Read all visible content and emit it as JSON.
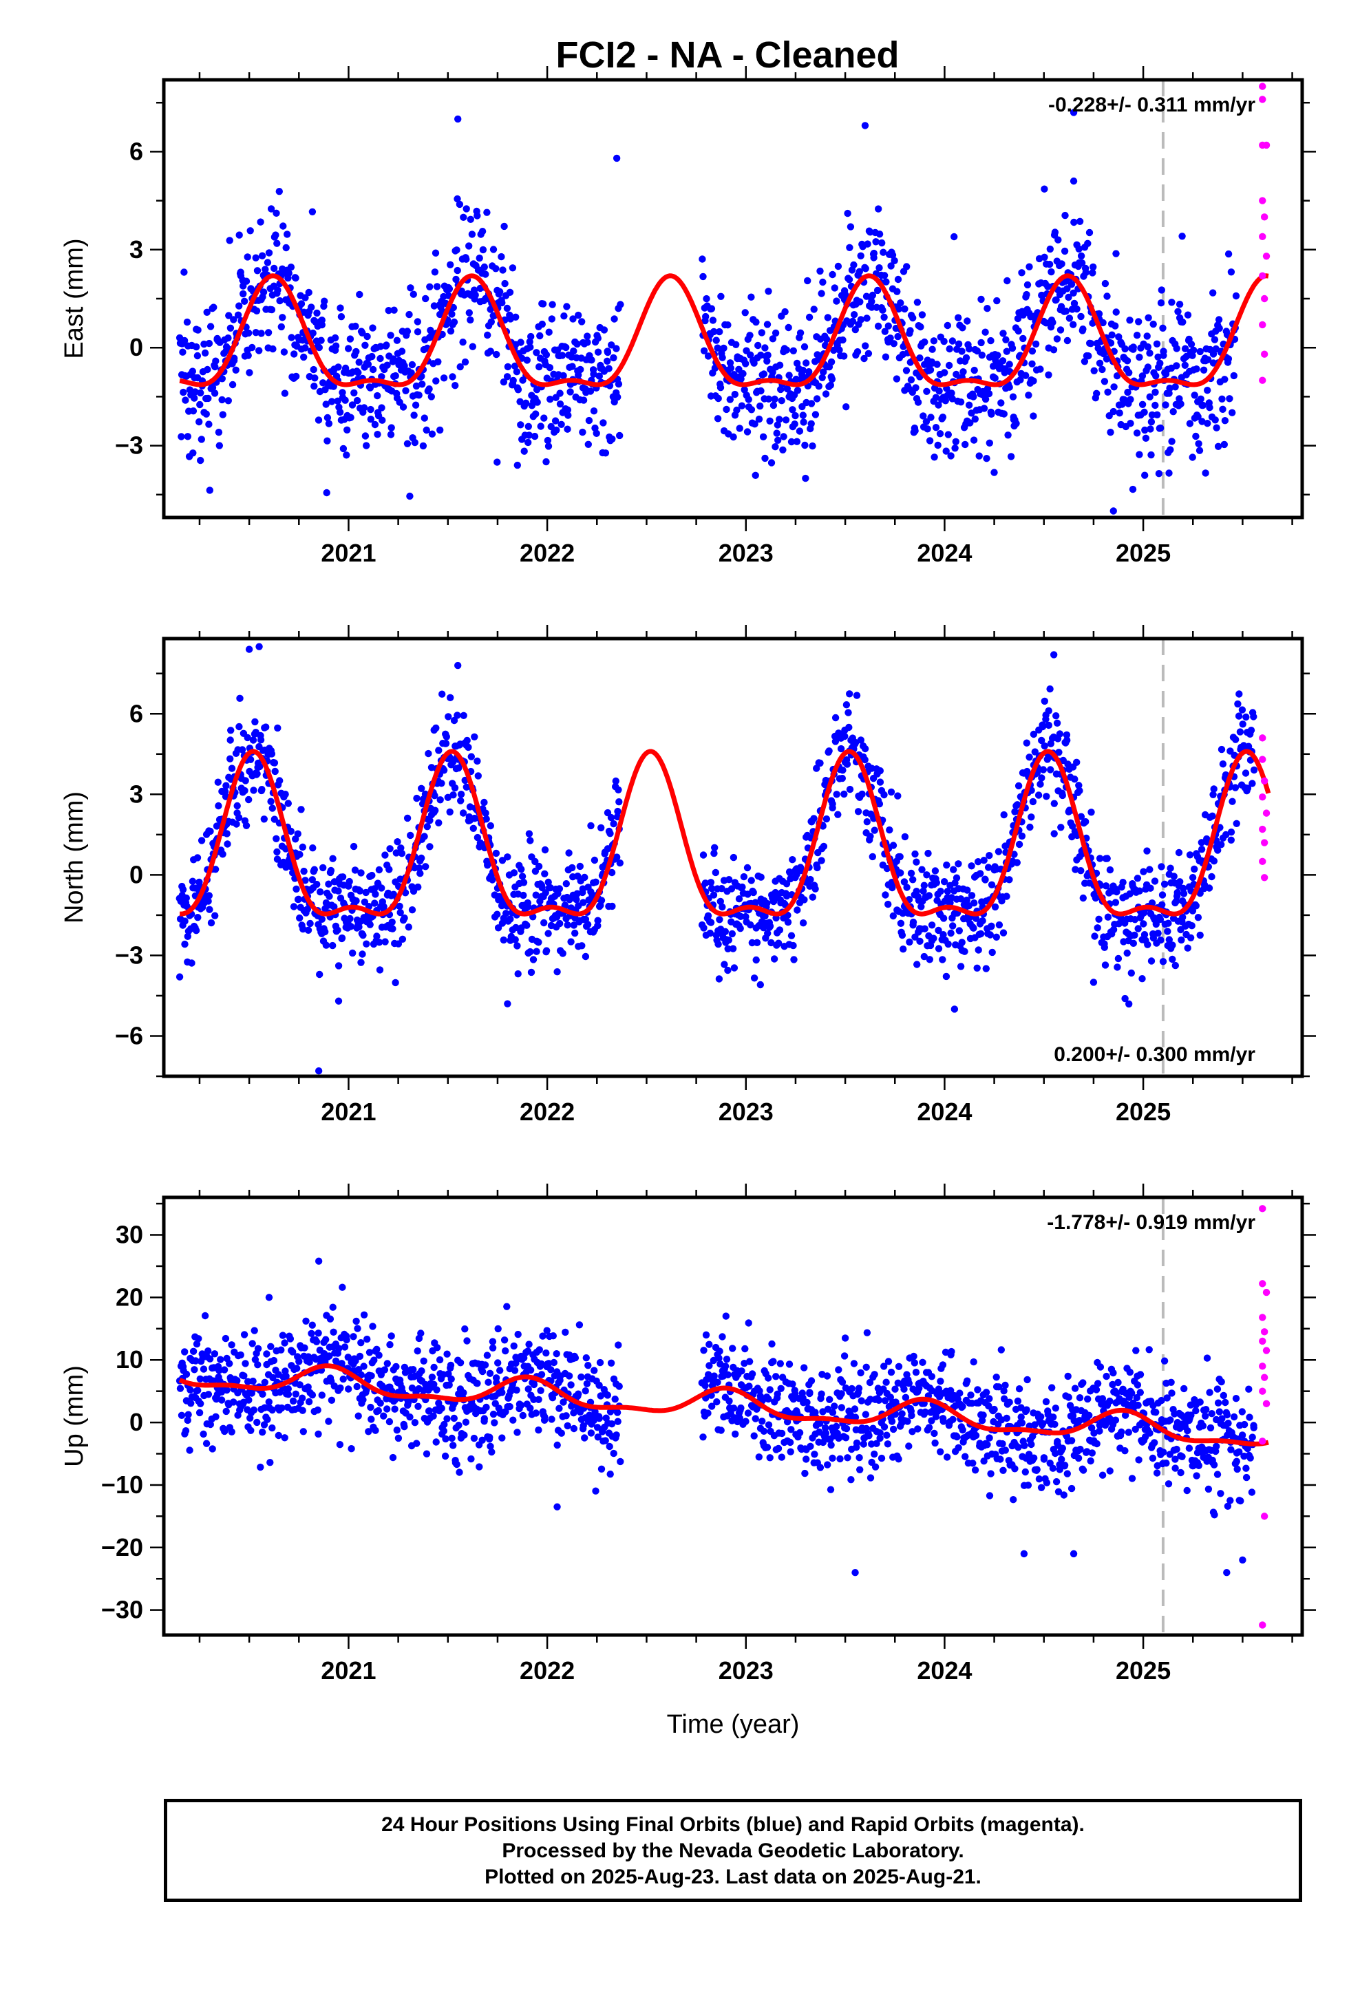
{
  "title": "FCI2  - NA - Cleaned",
  "colors": {
    "final": "#0000ff",
    "rapid": "#ff00ff",
    "model": "#ff0000",
    "dashed": "#bbbbbb",
    "frame": "#000000"
  },
  "footer": {
    "line1": "24 Hour Positions Using Final Orbits (blue) and Rapid Orbits (magenta).",
    "line2": "Processed by the Nevada Geodetic Laboratory.",
    "line3": "Plotted on 2025-Aug-23. Last data on 2025-Aug-21."
  },
  "chart_data": [
    {
      "type": "scatter",
      "component": "east",
      "ylabel": "East (mm)",
      "xlabel": "",
      "xlim": [
        2020.07,
        2025.8
      ],
      "ylim": [
        -5.2,
        8.2
      ],
      "yticks": [
        -3,
        0,
        3,
        6
      ],
      "ytick_labels": [
        "−3",
        "0",
        "3",
        "6"
      ],
      "xticks": [
        2021,
        2022,
        2023,
        2024,
        2025
      ],
      "xtick_labels": [
        "2021",
        "2022",
        "2023",
        "2024",
        "2025"
      ],
      "rate_text": "-0.228+/- 0.311 mm/yr",
      "rate_position": "top-right",
      "dashed_line_x": 2025.1,
      "grid": false,
      "final_data_ranges": [
        [
          2020.15,
          2022.37
        ],
        [
          2022.78,
          2025.47
        ]
      ],
      "rapid_data_range": [
        2025.55,
        2025.63
      ],
      "model": {
        "offset": 0.0,
        "trend": 0.0,
        "annual_amp": 1.6,
        "annual_peak": 2020.62,
        "semiannual_amp": 0.6,
        "semiannual_peak": 2020.62
      },
      "scatter_sigma": 1.2,
      "outliers": [
        {
          "x": 2021.55,
          "y": 7.0
        },
        {
          "x": 2023.6,
          "y": 6.8
        },
        {
          "x": 2024.65,
          "y": 7.2
        },
        {
          "x": 2022.35,
          "y": 5.8
        },
        {
          "x": 2021.85,
          "y": -3.6
        },
        {
          "x": 2023.3,
          "y": -4.0
        },
        {
          "x": 2024.85,
          "y": -5.0
        },
        {
          "x": 2020.35,
          "y": -3.0
        },
        {
          "x": 2024.65,
          "y": 5.1
        }
      ],
      "rapid_points": [
        {
          "x": 2025.6,
          "y": 8.0
        },
        {
          "x": 2025.6,
          "y": 7.6
        },
        {
          "x": 2025.6,
          "y": 6.2
        },
        {
          "x": 2025.62,
          "y": 6.2
        },
        {
          "x": 2025.6,
          "y": 4.5
        },
        {
          "x": 2025.61,
          "y": 4.0
        },
        {
          "x": 2025.6,
          "y": 3.4
        },
        {
          "x": 2025.62,
          "y": 2.8
        },
        {
          "x": 2025.6,
          "y": 2.2
        },
        {
          "x": 2025.61,
          "y": 1.5
        },
        {
          "x": 2025.6,
          "y": 0.7
        },
        {
          "x": 2025.61,
          "y": -0.2
        },
        {
          "x": 2025.6,
          "y": -1.0
        }
      ]
    },
    {
      "type": "scatter",
      "component": "north",
      "ylabel": "North (mm)",
      "xlabel": "",
      "xlim": [
        2020.07,
        2025.8
      ],
      "ylim": [
        -7.5,
        8.8
      ],
      "yticks": [
        -6,
        -3,
        0,
        3,
        6
      ],
      "ytick_labels": [
        "−6",
        "−3",
        "0",
        "3",
        "6"
      ],
      "xticks": [
        2021,
        2022,
        2023,
        2024,
        2025
      ],
      "xtick_labels": [
        "2021",
        "2022",
        "2023",
        "2024",
        "2025"
      ],
      "rate_text": "0.200+/- 0.300 mm/yr",
      "rate_position": "bottom-right",
      "dashed_line_x": 2025.1,
      "grid": false,
      "final_data_ranges": [
        [
          2020.15,
          2022.37
        ],
        [
          2022.78,
          2025.56
        ]
      ],
      "rapid_data_range": [
        2025.55,
        2025.63
      ],
      "model": {
        "offset": 0.6,
        "trend": 0.0,
        "annual_amp": 2.9,
        "annual_peak": 2020.52,
        "semiannual_amp": 1.1,
        "semiannual_peak": 2020.52
      },
      "scatter_sigma": 1.0,
      "outliers": [
        {
          "x": 2020.95,
          "y": -4.7
        },
        {
          "x": 2020.85,
          "y": -7.3
        },
        {
          "x": 2021.8,
          "y": -4.8
        },
        {
          "x": 2024.05,
          "y": -5.0
        },
        {
          "x": 2020.55,
          "y": 8.5
        },
        {
          "x": 2020.5,
          "y": 8.4
        },
        {
          "x": 2024.55,
          "y": 8.2
        },
        {
          "x": 2021.55,
          "y": 7.8
        },
        {
          "x": 2020.15,
          "y": -3.8
        },
        {
          "x": 2024.75,
          "y": -4.0
        }
      ],
      "rapid_points": [
        {
          "x": 2025.6,
          "y": 5.1
        },
        {
          "x": 2025.6,
          "y": 4.3
        },
        {
          "x": 2025.61,
          "y": 3.5
        },
        {
          "x": 2025.6,
          "y": 2.9
        },
        {
          "x": 2025.62,
          "y": 2.3
        },
        {
          "x": 2025.6,
          "y": 1.7
        },
        {
          "x": 2025.61,
          "y": 1.2
        },
        {
          "x": 2025.6,
          "y": 0.5
        },
        {
          "x": 2025.61,
          "y": -0.1
        }
      ]
    },
    {
      "type": "scatter",
      "component": "up",
      "ylabel": "Up (mm)",
      "xlabel": "Time (year)",
      "xlim": [
        2020.07,
        2025.8
      ],
      "ylim": [
        -34,
        36
      ],
      "yticks": [
        -30,
        -20,
        -10,
        0,
        10,
        20,
        30
      ],
      "ytick_labels": [
        "−30",
        "−20",
        "−10",
        "0",
        "10",
        "20",
        "30"
      ],
      "xticks": [
        2021,
        2022,
        2023,
        2024,
        2025
      ],
      "xtick_labels": [
        "2021",
        "2022",
        "2023",
        "2024",
        "2025"
      ],
      "rate_text": "-1.778+/- 0.919 mm/yr",
      "rate_position": "top-right",
      "dashed_line_x": 2025.1,
      "grid": false,
      "final_data_ranges": [
        [
          2020.15,
          2022.37
        ],
        [
          2022.78,
          2025.56
        ]
      ],
      "rapid_data_range": [
        2025.55,
        2025.63
      ],
      "model": {
        "offset": 2.7,
        "trend": -1.78,
        "annual_amp": 2.0,
        "annual_peak": 2020.9,
        "semiannual_amp": 0.8,
        "semiannual_peak": 2020.9
      },
      "scatter_sigma": 4.5,
      "outliers": [
        {
          "x": 2020.85,
          "y": 25.8
        },
        {
          "x": 2020.6,
          "y": 20.0
        },
        {
          "x": 2022.05,
          "y": -13.5
        },
        {
          "x": 2023.55,
          "y": -24.0
        },
        {
          "x": 2025.42,
          "y": -24.0
        },
        {
          "x": 2024.4,
          "y": -21.0
        },
        {
          "x": 2024.65,
          "y": -21.0
        },
        {
          "x": 2025.5,
          "y": -22.0
        },
        {
          "x": 2023.5,
          "y": 13.5
        },
        {
          "x": 2022.8,
          "y": 14.0
        }
      ],
      "rapid_points": [
        {
          "x": 2025.6,
          "y": 34.2
        },
        {
          "x": 2025.6,
          "y": 22.2
        },
        {
          "x": 2025.62,
          "y": 20.8
        },
        {
          "x": 2025.6,
          "y": 16.8
        },
        {
          "x": 2025.61,
          "y": 14.5
        },
        {
          "x": 2025.6,
          "y": 13.0
        },
        {
          "x": 2025.62,
          "y": 11.5
        },
        {
          "x": 2025.6,
          "y": 9.0
        },
        {
          "x": 2025.61,
          "y": 7.2
        },
        {
          "x": 2025.6,
          "y": 5.0
        },
        {
          "x": 2025.62,
          "y": 3.0
        },
        {
          "x": 2025.6,
          "y": -3.0
        },
        {
          "x": 2025.61,
          "y": -15.0
        },
        {
          "x": 2025.6,
          "y": -32.4
        }
      ]
    }
  ]
}
